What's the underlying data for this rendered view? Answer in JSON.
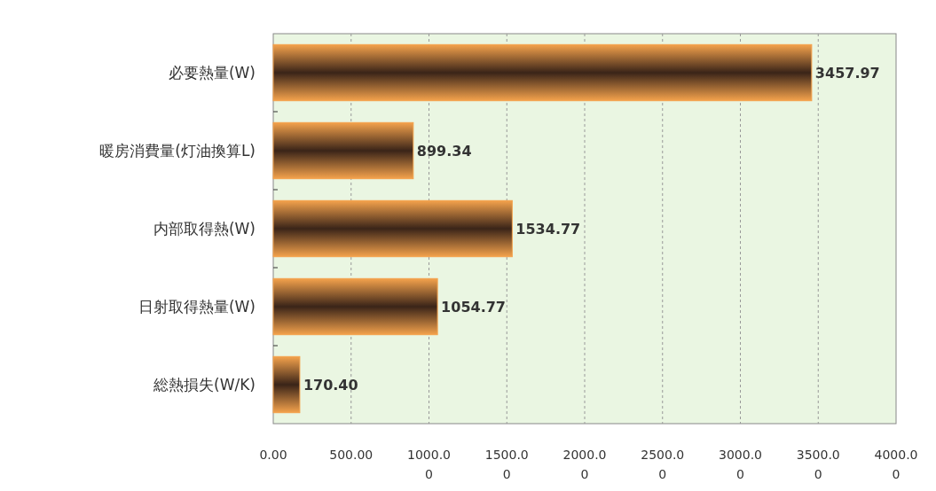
{
  "chart_data": {
    "type": "bar",
    "orientation": "horizontal",
    "categories": [
      "必要熱量(W)",
      "暖房消費量(灯油換算L)",
      "内部取得熱(W)",
      "日射取得熱量(W)",
      "総熱損失(W/K)"
    ],
    "values": [
      3457.97,
      899.34,
      1534.77,
      1054.77,
      170.4
    ],
    "value_labels": [
      "3457.97",
      "899.34",
      "1534.77",
      "1054.77",
      "170.40"
    ],
    "color": "#f4a24c",
    "xlim": [
      0,
      4000
    ],
    "xticks": [
      {
        "value": 0,
        "label": "0.00"
      },
      {
        "value": 500,
        "label": "500.00"
      },
      {
        "value": 1000,
        "label": "1000.00"
      },
      {
        "value": 1500,
        "label": "1500.00"
      },
      {
        "value": 2000,
        "label": "2000.00"
      },
      {
        "value": 2500,
        "label": "2500.00"
      },
      {
        "value": 3000,
        "label": "3000.00"
      },
      {
        "value": 3500,
        "label": "3500.00"
      },
      {
        "value": 4000,
        "label": "4000.00"
      }
    ],
    "grid": "x"
  }
}
